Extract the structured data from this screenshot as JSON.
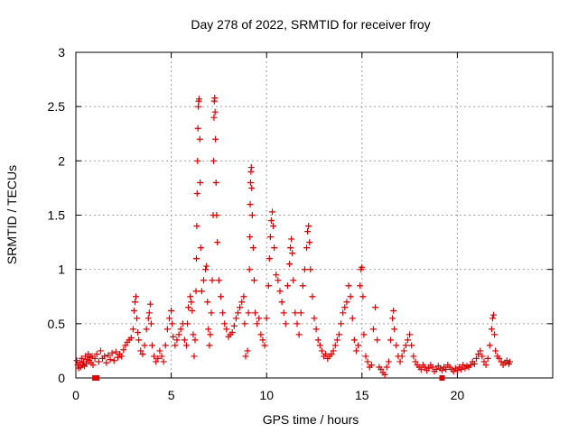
{
  "chart_data": {
    "type": "scatter",
    "title": "Day 278 of 2022, SRMTID for receiver froy",
    "xlabel": "GPS time / hours",
    "ylabel": "SRMTID / TECUs",
    "xlim": [
      0,
      25
    ],
    "ylim": [
      0,
      3
    ],
    "xticks": [
      0,
      5,
      10,
      15,
      20
    ],
    "yticks": [
      0,
      0.5,
      1,
      1.5,
      2,
      2.5,
      3
    ],
    "xtick_labels": [
      "0",
      "5",
      "10",
      "15",
      "20"
    ],
    "ytick_labels": [
      "0",
      "0.5",
      "1",
      "1.5",
      "2",
      "2.5",
      "3"
    ],
    "grid": true,
    "marker": "+",
    "color": "#e00000",
    "series": [
      {
        "name": "SRMTID",
        "points": [
          [
            0.05,
            0.16
          ],
          [
            0.1,
            0.12
          ],
          [
            0.15,
            0.09
          ],
          [
            0.2,
            0.14
          ],
          [
            0.25,
            0.1
          ],
          [
            0.3,
            0.18
          ],
          [
            0.35,
            0.12
          ],
          [
            0.4,
            0.15
          ],
          [
            0.45,
            0.11
          ],
          [
            0.5,
            0.2
          ],
          [
            0.55,
            0.13
          ],
          [
            0.6,
            0.17
          ],
          [
            0.65,
            0.22
          ],
          [
            0.7,
            0.16
          ],
          [
            0.75,
            0.19
          ],
          [
            0.8,
            0.14
          ],
          [
            0.85,
            0.2
          ],
          [
            0.9,
            0.12
          ],
          [
            1.0,
            0.18
          ],
          [
            1.1,
            0.22
          ],
          [
            1.2,
            0.15
          ],
          [
            1.3,
            0.25
          ],
          [
            1.4,
            0.18
          ],
          [
            1.5,
            0.2
          ],
          [
            1.6,
            0.14
          ],
          [
            1.7,
            0.21
          ],
          [
            1.8,
            0.17
          ],
          [
            1.9,
            0.23
          ],
          [
            2.0,
            0.16
          ],
          [
            2.1,
            0.24
          ],
          [
            2.2,
            0.19
          ],
          [
            2.3,
            0.22
          ],
          [
            2.4,
            0.2
          ],
          [
            2.5,
            0.26
          ],
          [
            2.6,
            0.3
          ],
          [
            2.7,
            0.33
          ],
          [
            2.8,
            0.35
          ],
          [
            2.9,
            0.37
          ],
          [
            3.0,
            0.45
          ],
          [
            3.05,
            0.62
          ],
          [
            3.1,
            0.7
          ],
          [
            3.15,
            0.75
          ],
          [
            3.2,
            0.55
          ],
          [
            3.25,
            0.42
          ],
          [
            3.3,
            0.35
          ],
          [
            3.4,
            0.25
          ],
          [
            3.5,
            0.22
          ],
          [
            3.6,
            0.3
          ],
          [
            3.7,
            0.45
          ],
          [
            3.8,
            0.55
          ],
          [
            3.85,
            0.6
          ],
          [
            3.9,
            0.68
          ],
          [
            3.95,
            0.5
          ],
          [
            4.0,
            0.3
          ],
          [
            4.1,
            0.2
          ],
          [
            4.2,
            0.15
          ],
          [
            4.3,
            0.18
          ],
          [
            4.4,
            0.25
          ],
          [
            4.5,
            0.2
          ],
          [
            4.6,
            0.15
          ],
          [
            4.7,
            0.3
          ],
          [
            4.8,
            0.45
          ],
          [
            4.9,
            0.55
          ],
          [
            5.0,
            0.62
          ],
          [
            5.05,
            0.5
          ],
          [
            5.1,
            0.38
          ],
          [
            5.2,
            0.3
          ],
          [
            5.3,
            0.35
          ],
          [
            5.4,
            0.4
          ],
          [
            5.5,
            0.45
          ],
          [
            5.6,
            0.5
          ],
          [
            5.7,
            0.35
          ],
          [
            5.8,
            0.3
          ],
          [
            5.85,
            0.5
          ],
          [
            5.9,
            0.65
          ],
          [
            6.0,
            0.75
          ],
          [
            6.05,
            0.7
          ],
          [
            6.1,
            0.62
          ],
          [
            6.15,
            0.4
          ],
          [
            6.2,
            0.2
          ],
          [
            6.25,
            0.35
          ],
          [
            6.3,
            0.8
          ],
          [
            6.32,
            1.1
          ],
          [
            6.34,
            1.4
          ],
          [
            6.36,
            1.7
          ],
          [
            6.38,
            2.0
          ],
          [
            6.4,
            2.3
          ],
          [
            6.42,
            2.5
          ],
          [
            6.44,
            2.55
          ],
          [
            6.46,
            2.57
          ],
          [
            6.5,
            2.2
          ],
          [
            6.52,
            1.8
          ],
          [
            6.55,
            1.2
          ],
          [
            6.6,
            0.8
          ],
          [
            6.7,
            0.9
          ],
          [
            6.8,
            1.0
          ],
          [
            6.85,
            1.03
          ],
          [
            6.9,
            0.7
          ],
          [
            6.95,
            0.45
          ],
          [
            7.0,
            0.3
          ],
          [
            7.05,
            0.4
          ],
          [
            7.1,
            0.6
          ],
          [
            7.15,
            0.9
          ],
          [
            7.2,
            1.5
          ],
          [
            7.22,
            2.0
          ],
          [
            7.24,
            2.4
          ],
          [
            7.26,
            2.55
          ],
          [
            7.28,
            2.58
          ],
          [
            7.3,
            2.45
          ],
          [
            7.32,
            2.2
          ],
          [
            7.35,
            1.8
          ],
          [
            7.38,
            1.5
          ],
          [
            7.42,
            1.25
          ],
          [
            7.5,
            0.9
          ],
          [
            7.6,
            0.75
          ],
          [
            7.7,
            0.6
          ],
          [
            7.8,
            0.5
          ],
          [
            7.9,
            0.45
          ],
          [
            8.0,
            0.38
          ],
          [
            8.1,
            0.4
          ],
          [
            8.2,
            0.42
          ],
          [
            8.3,
            0.48
          ],
          [
            8.4,
            0.55
          ],
          [
            8.5,
            0.6
          ],
          [
            8.6,
            0.65
          ],
          [
            8.7,
            0.7
          ],
          [
            8.8,
            0.75
          ],
          [
            8.85,
            0.5
          ],
          [
            8.9,
            0.2
          ],
          [
            9.0,
            0.25
          ],
          [
            9.05,
            0.6
          ],
          [
            9.1,
            1.0
          ],
          [
            9.12,
            1.3
          ],
          [
            9.14,
            1.6
          ],
          [
            9.16,
            1.8
          ],
          [
            9.18,
            1.9
          ],
          [
            9.2,
            1.94
          ],
          [
            9.22,
            1.75
          ],
          [
            9.25,
            1.5
          ],
          [
            9.3,
            1.2
          ],
          [
            9.35,
            0.9
          ],
          [
            9.4,
            0.6
          ],
          [
            9.5,
            0.5
          ],
          [
            9.6,
            0.55
          ],
          [
            9.7,
            0.4
          ],
          [
            9.8,
            0.35
          ],
          [
            9.9,
            0.3
          ],
          [
            10.0,
            0.55
          ],
          [
            10.1,
            0.85
          ],
          [
            10.15,
            1.1
          ],
          [
            10.2,
            1.3
          ],
          [
            10.25,
            1.45
          ],
          [
            10.3,
            1.53
          ],
          [
            10.35,
            1.4
          ],
          [
            10.4,
            1.2
          ],
          [
            10.5,
            0.95
          ],
          [
            10.6,
            0.9
          ],
          [
            10.7,
            0.8
          ],
          [
            10.8,
            0.7
          ],
          [
            10.9,
            0.6
          ],
          [
            11.0,
            0.5
          ],
          [
            11.1,
            0.85
          ],
          [
            11.2,
            1.05
          ],
          [
            11.25,
            1.2
          ],
          [
            11.3,
            1.28
          ],
          [
            11.35,
            1.15
          ],
          [
            11.4,
            0.9
          ],
          [
            11.5,
            0.6
          ],
          [
            11.6,
            0.5
          ],
          [
            11.7,
            0.4
          ],
          [
            11.8,
            0.6
          ],
          [
            11.9,
            0.85
          ],
          [
            12.0,
            1.0
          ],
          [
            12.1,
            1.2
          ],
          [
            12.15,
            1.35
          ],
          [
            12.2,
            1.4
          ],
          [
            12.25,
            1.25
          ],
          [
            12.3,
            1.0
          ],
          [
            12.4,
            0.75
          ],
          [
            12.5,
            0.55
          ],
          [
            12.6,
            0.45
          ],
          [
            12.7,
            0.35
          ],
          [
            12.8,
            0.3
          ],
          [
            12.9,
            0.25
          ],
          [
            13.0,
            0.2
          ],
          [
            13.1,
            0.22
          ],
          [
            13.2,
            0.18
          ],
          [
            13.3,
            0.2
          ],
          [
            13.4,
            0.22
          ],
          [
            13.5,
            0.25
          ],
          [
            13.6,
            0.3
          ],
          [
            13.7,
            0.35
          ],
          [
            13.8,
            0.4
          ],
          [
            13.9,
            0.5
          ],
          [
            14.0,
            0.6
          ],
          [
            14.1,
            0.65
          ],
          [
            14.2,
            0.7
          ],
          [
            14.3,
            0.85
          ],
          [
            14.4,
            0.75
          ],
          [
            14.5,
            0.55
          ],
          [
            14.6,
            0.35
          ],
          [
            14.7,
            0.25
          ],
          [
            14.8,
            0.3
          ],
          [
            14.9,
            0.85
          ],
          [
            14.95,
            1.0
          ],
          [
            15.0,
            1.02
          ],
          [
            15.05,
            0.75
          ],
          [
            15.1,
            0.4
          ],
          [
            15.2,
            0.2
          ],
          [
            15.3,
            0.15
          ],
          [
            15.4,
            0.1
          ],
          [
            15.5,
            0.12
          ],
          [
            15.6,
            0.45
          ],
          [
            15.7,
            0.65
          ],
          [
            15.8,
            0.35
          ],
          [
            15.9,
            0.1
          ],
          [
            16.0,
            0.08
          ],
          [
            16.1,
            0.05
          ],
          [
            16.2,
            0.03
          ],
          [
            16.3,
            0.1
          ],
          [
            16.4,
            0.15
          ],
          [
            16.5,
            0.35
          ],
          [
            16.6,
            0.55
          ],
          [
            16.65,
            0.62
          ],
          [
            16.7,
            0.45
          ],
          [
            16.8,
            0.3
          ],
          [
            16.9,
            0.2
          ],
          [
            17.0,
            0.15
          ],
          [
            17.1,
            0.2
          ],
          [
            17.2,
            0.25
          ],
          [
            17.3,
            0.3
          ],
          [
            17.4,
            0.35
          ],
          [
            17.5,
            0.4
          ],
          [
            17.6,
            0.3
          ],
          [
            17.7,
            0.2
          ],
          [
            17.8,
            0.15
          ],
          [
            17.9,
            0.12
          ],
          [
            18.0,
            0.1
          ],
          [
            18.1,
            0.08
          ],
          [
            18.2,
            0.12
          ],
          [
            18.3,
            0.1
          ],
          [
            18.4,
            0.07
          ],
          [
            18.5,
            0.09
          ],
          [
            18.6,
            0.12
          ],
          [
            18.7,
            0.1
          ],
          [
            18.8,
            0.06
          ],
          [
            18.9,
            0.08
          ],
          [
            19.0,
            0.11
          ],
          [
            19.1,
            0.09
          ],
          [
            19.2,
            0.07
          ],
          [
            19.3,
            0.1
          ],
          [
            19.4,
            0.08
          ],
          [
            19.5,
            0.12
          ],
          [
            19.6,
            0.1
          ],
          [
            19.7,
            0.08
          ],
          [
            19.8,
            0.06
          ],
          [
            19.9,
            0.09
          ],
          [
            20.0,
            0.07
          ],
          [
            20.1,
            0.1
          ],
          [
            20.2,
            0.08
          ],
          [
            20.3,
            0.12
          ],
          [
            20.4,
            0.09
          ],
          [
            20.5,
            0.11
          ],
          [
            20.6,
            0.1
          ],
          [
            20.7,
            0.12
          ],
          [
            20.8,
            0.15
          ],
          [
            20.9,
            0.13
          ],
          [
            21.0,
            0.18
          ],
          [
            21.1,
            0.22
          ],
          [
            21.2,
            0.25
          ],
          [
            21.3,
            0.2
          ],
          [
            21.4,
            0.15
          ],
          [
            21.5,
            0.12
          ],
          [
            21.6,
            0.18
          ],
          [
            21.7,
            0.3
          ],
          [
            21.8,
            0.45
          ],
          [
            21.85,
            0.55
          ],
          [
            21.9,
            0.58
          ],
          [
            21.95,
            0.4
          ],
          [
            22.0,
            0.25
          ],
          [
            22.1,
            0.2
          ],
          [
            22.2,
            0.18
          ],
          [
            22.3,
            0.15
          ],
          [
            22.4,
            0.12
          ],
          [
            22.5,
            0.14
          ],
          [
            22.6,
            0.16
          ],
          [
            22.7,
            0.13
          ],
          [
            22.75,
            0.15
          ]
        ]
      }
    ],
    "zero_markers": [
      [
        1.0,
        0.0
      ],
      [
        1.1,
        0.0
      ],
      [
        19.2,
        0.0
      ]
    ]
  }
}
